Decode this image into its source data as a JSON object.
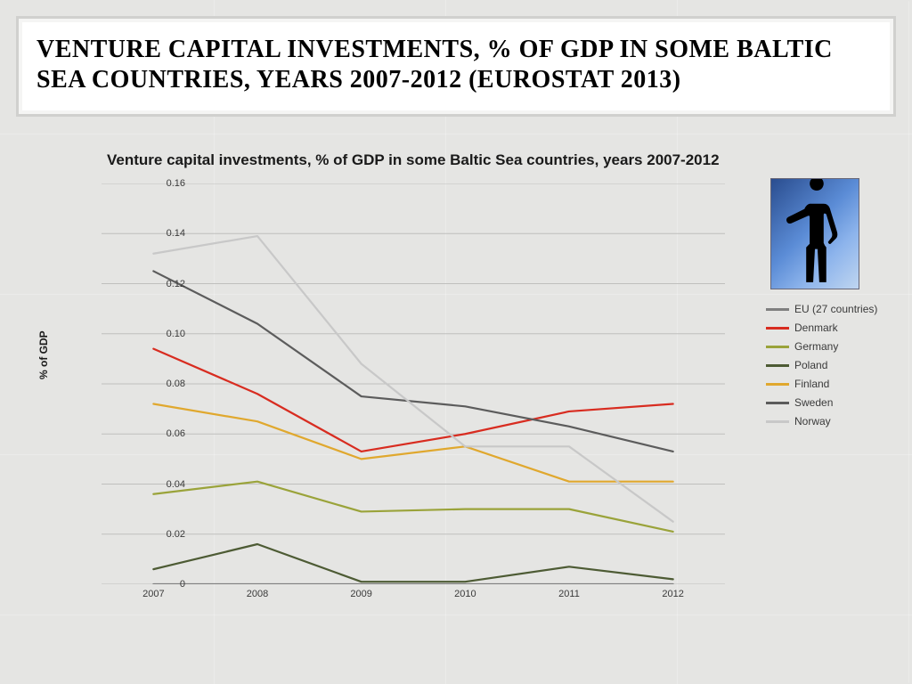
{
  "title": "VENTURE CAPITAL INVESTMENTS, % OF GDP IN SOME BALTIC SEA COUNTRIES, YEARS 2007-2012 (EUROSTAT 2013)",
  "chart": {
    "type": "line",
    "title": "Venture capital investments, % of GDP in some Baltic Sea countries, years 2007-2012",
    "ylabel": "% of GDP",
    "ylim": [
      0,
      0.16
    ],
    "ytick_step": 0.02,
    "xticks": [
      "2007",
      "2008",
      "2009",
      "2010",
      "2011",
      "2012"
    ],
    "grid_color": "#bfbfbd",
    "axis_color": "#bfbfbd",
    "background_color": "transparent",
    "tick_fontsize": 11,
    "title_fontsize": 17,
    "label_fontsize": 12,
    "line_width": 2.2,
    "series": [
      {
        "name": "EU (27 countries)",
        "color": "#7f7f7f",
        "values": [
          0.0,
          0.0,
          0.0,
          0.0,
          0.0,
          0.0
        ]
      },
      {
        "name": "Denmark",
        "color": "#d82c20",
        "values": [
          0.094,
          0.076,
          0.053,
          0.06,
          0.069,
          0.072
        ]
      },
      {
        "name": "Germany",
        "color": "#9aa33a",
        "values": [
          0.036,
          0.041,
          0.029,
          0.03,
          0.03,
          0.021
        ]
      },
      {
        "name": "Poland",
        "color": "#4d5b34",
        "values": [
          0.006,
          0.016,
          0.001,
          0.001,
          0.007,
          0.002
        ]
      },
      {
        "name": "Finland",
        "color": "#e0a82e",
        "values": [
          0.072,
          0.065,
          0.05,
          0.055,
          0.041,
          0.041
        ]
      },
      {
        "name": "Sweden",
        "color": "#5c5c5c",
        "values": [
          0.125,
          0.104,
          0.075,
          0.071,
          0.063,
          0.053
        ]
      },
      {
        "name": "Norway",
        "color": "#c8c8c8",
        "values": [
          0.132,
          0.139,
          0.088,
          0.055,
          0.055,
          0.025
        ]
      }
    ]
  },
  "colors": {
    "slide_bg": "#e5e5e3",
    "title_panel_bg": "#ffffff",
    "title_panel_border": "#d0d0ce"
  }
}
